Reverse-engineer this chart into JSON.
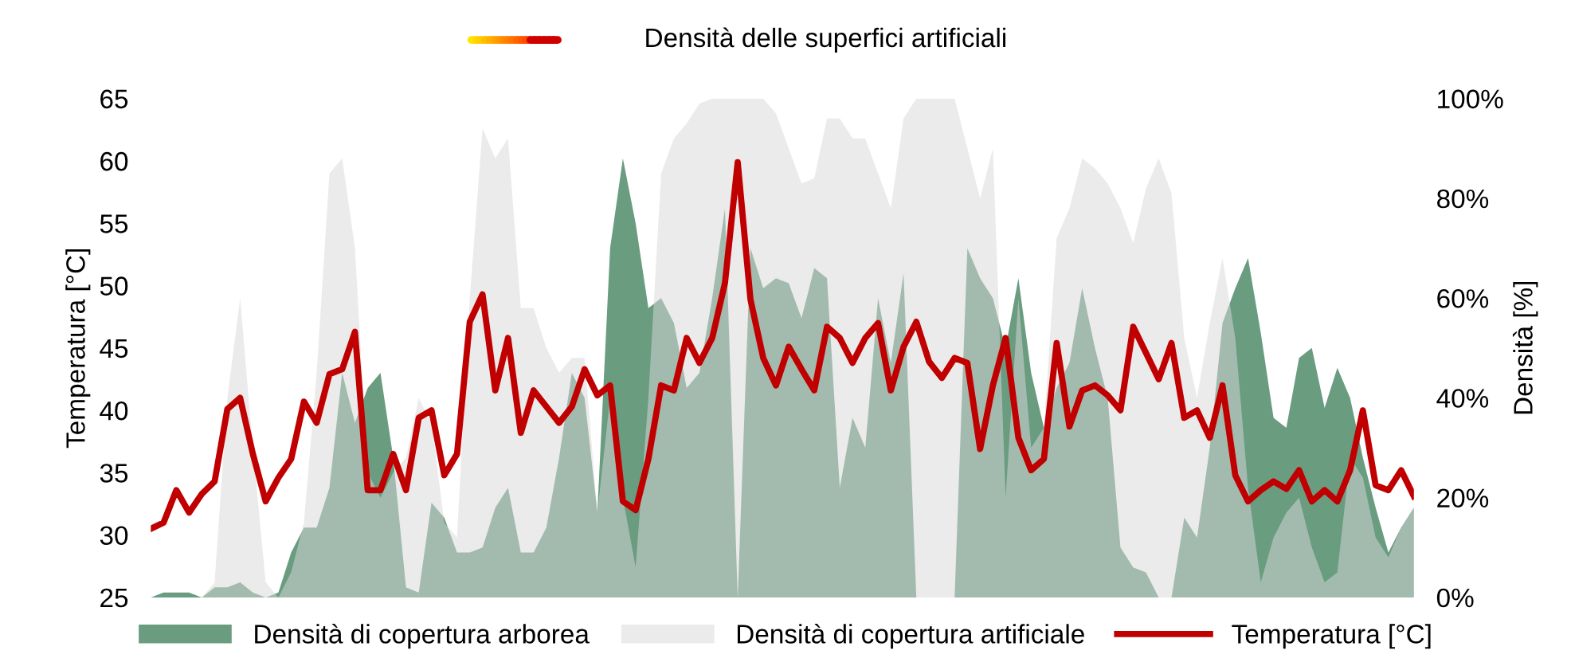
{
  "chart_data": {
    "type": "line",
    "annotations": [
      "Densità delle superfici artificiali"
    ],
    "ylabel": "Temperatura [°C]",
    "y2label": "Densità [%]",
    "ylim": [
      25,
      65
    ],
    "yticks": [
      25,
      30,
      35,
      40,
      45,
      50,
      55,
      60,
      65
    ],
    "y2lim": [
      0,
      100
    ],
    "y2ticks": [
      {
        "value": 0,
        "label": "0%"
      },
      {
        "value": 20,
        "label": "20%"
      },
      {
        "value": 40,
        "label": "40%"
      },
      {
        "value": 60,
        "label": "60%"
      },
      {
        "value": 80,
        "label": "80%"
      },
      {
        "value": 100,
        "label": "100%"
      }
    ],
    "grid": false,
    "legend": "bottom",
    "marker": "none",
    "line_style": "solid",
    "categories": [
      null,
      null,
      null,
      null,
      null,
      null,
      null,
      null,
      null,
      null,
      null,
      null,
      null,
      null,
      null,
      null,
      null,
      null,
      null,
      null,
      null,
      null,
      null,
      null,
      null,
      null,
      null,
      null,
      null,
      null,
      null,
      null,
      null,
      null,
      null,
      null,
      null,
      null,
      null,
      null,
      null,
      null,
      null,
      null,
      null,
      null,
      null,
      null,
      null,
      null,
      null,
      null,
      null,
      null,
      null,
      null,
      null,
      null,
      null,
      null,
      null,
      null,
      null,
      null,
      null,
      null,
      null,
      null,
      null,
      null,
      null,
      null,
      null,
      null,
      null,
      null,
      null,
      null,
      null,
      null,
      null,
      null,
      null,
      null,
      null,
      null,
      null,
      null,
      null,
      null,
      null,
      null,
      null,
      null,
      null,
      null,
      null,
      null,
      null,
      null
    ],
    "series": [
      {
        "name": "Densità di copertura arborea",
        "type": "area",
        "axis": "y2",
        "color": "#6a9c80",
        "values": [
          0,
          1,
          1,
          1,
          0,
          2,
          2,
          3,
          1,
          0,
          1,
          9,
          14,
          14,
          22,
          45,
          35,
          42,
          45,
          28,
          2,
          1,
          19,
          16,
          9,
          9,
          10,
          18,
          22,
          9,
          9,
          14,
          28,
          45,
          40,
          17,
          70,
          88,
          75,
          58,
          60,
          55,
          42,
          45,
          60,
          78,
          0,
          70,
          62,
          64,
          63,
          56,
          66,
          64,
          22,
          36,
          30,
          60,
          47,
          65,
          0,
          0,
          0,
          0,
          70,
          64,
          60,
          50,
          64,
          45,
          34,
          42,
          47,
          62,
          50,
          40,
          10,
          6,
          5,
          0,
          0,
          16,
          12,
          30,
          55,
          62,
          68,
          53,
          36,
          34,
          48,
          50,
          38,
          46,
          40,
          28,
          18,
          9,
          14,
          18
        ]
      },
      {
        "name": "Densità di copertura artificiale",
        "type": "area",
        "axis": "y2",
        "color": "#d9d9d9",
        "values": [
          0,
          0,
          0,
          0,
          0,
          3,
          40,
          60,
          30,
          3,
          0,
          5,
          15,
          45,
          85,
          88,
          70,
          25,
          20,
          25,
          28,
          40,
          35,
          15,
          12,
          60,
          94,
          88,
          92,
          58,
          58,
          50,
          45,
          48,
          48,
          17,
          40,
          20,
          6,
          40,
          85,
          92,
          95,
          99,
          100,
          100,
          100,
          100,
          100,
          97,
          90,
          83,
          84,
          96,
          96,
          92,
          92,
          85,
          78,
          96,
          100,
          100,
          100,
          100,
          90,
          80,
          90,
          20,
          60,
          30,
          34,
          72,
          78,
          88,
          86,
          83,
          78,
          71,
          82,
          88,
          81,
          52,
          40,
          55,
          68,
          52,
          22,
          3,
          12,
          17,
          20,
          10,
          3,
          5,
          28,
          24,
          12,
          8,
          14,
          18
        ]
      },
      {
        "name": "Temperatura [°C]",
        "axis": "y",
        "color": "#c00000",
        "values": [
          30.5,
          31.0,
          33.6,
          31.8,
          33.3,
          34.3,
          40.1,
          41.0,
          36.5,
          32.7,
          34.6,
          36.1,
          40.7,
          39.0,
          42.9,
          43.3,
          46.3,
          33.6,
          33.6,
          36.5,
          33.6,
          39.4,
          40.0,
          34.8,
          36.5,
          47.1,
          49.3,
          41.6,
          45.8,
          38.2,
          41.6,
          40.3,
          39.0,
          40.3,
          43.3,
          41.2,
          42.0,
          32.7,
          32.0,
          36.1,
          42.0,
          41.6,
          45.8,
          43.8,
          45.8,
          50.2,
          59.9,
          48.9,
          44.2,
          42.0,
          45.1,
          43.3,
          41.6,
          46.7,
          45.8,
          43.8,
          45.8,
          47.0,
          41.6,
          45.1,
          47.1,
          43.9,
          42.6,
          44.2,
          43.8,
          36.9,
          42.0,
          45.8,
          37.8,
          35.2,
          36.1,
          45.4,
          38.7,
          41.6,
          42.0,
          41.2,
          40.0,
          46.7,
          44.6,
          42.5,
          45.4,
          39.4,
          40.0,
          37.8,
          42.0,
          34.8,
          32.7,
          33.6,
          34.3,
          33.7,
          35.2,
          32.7,
          33.6,
          32.7,
          35.2,
          40.0,
          34.0,
          33.6,
          35.2,
          33.1
        ]
      }
    ]
  }
}
